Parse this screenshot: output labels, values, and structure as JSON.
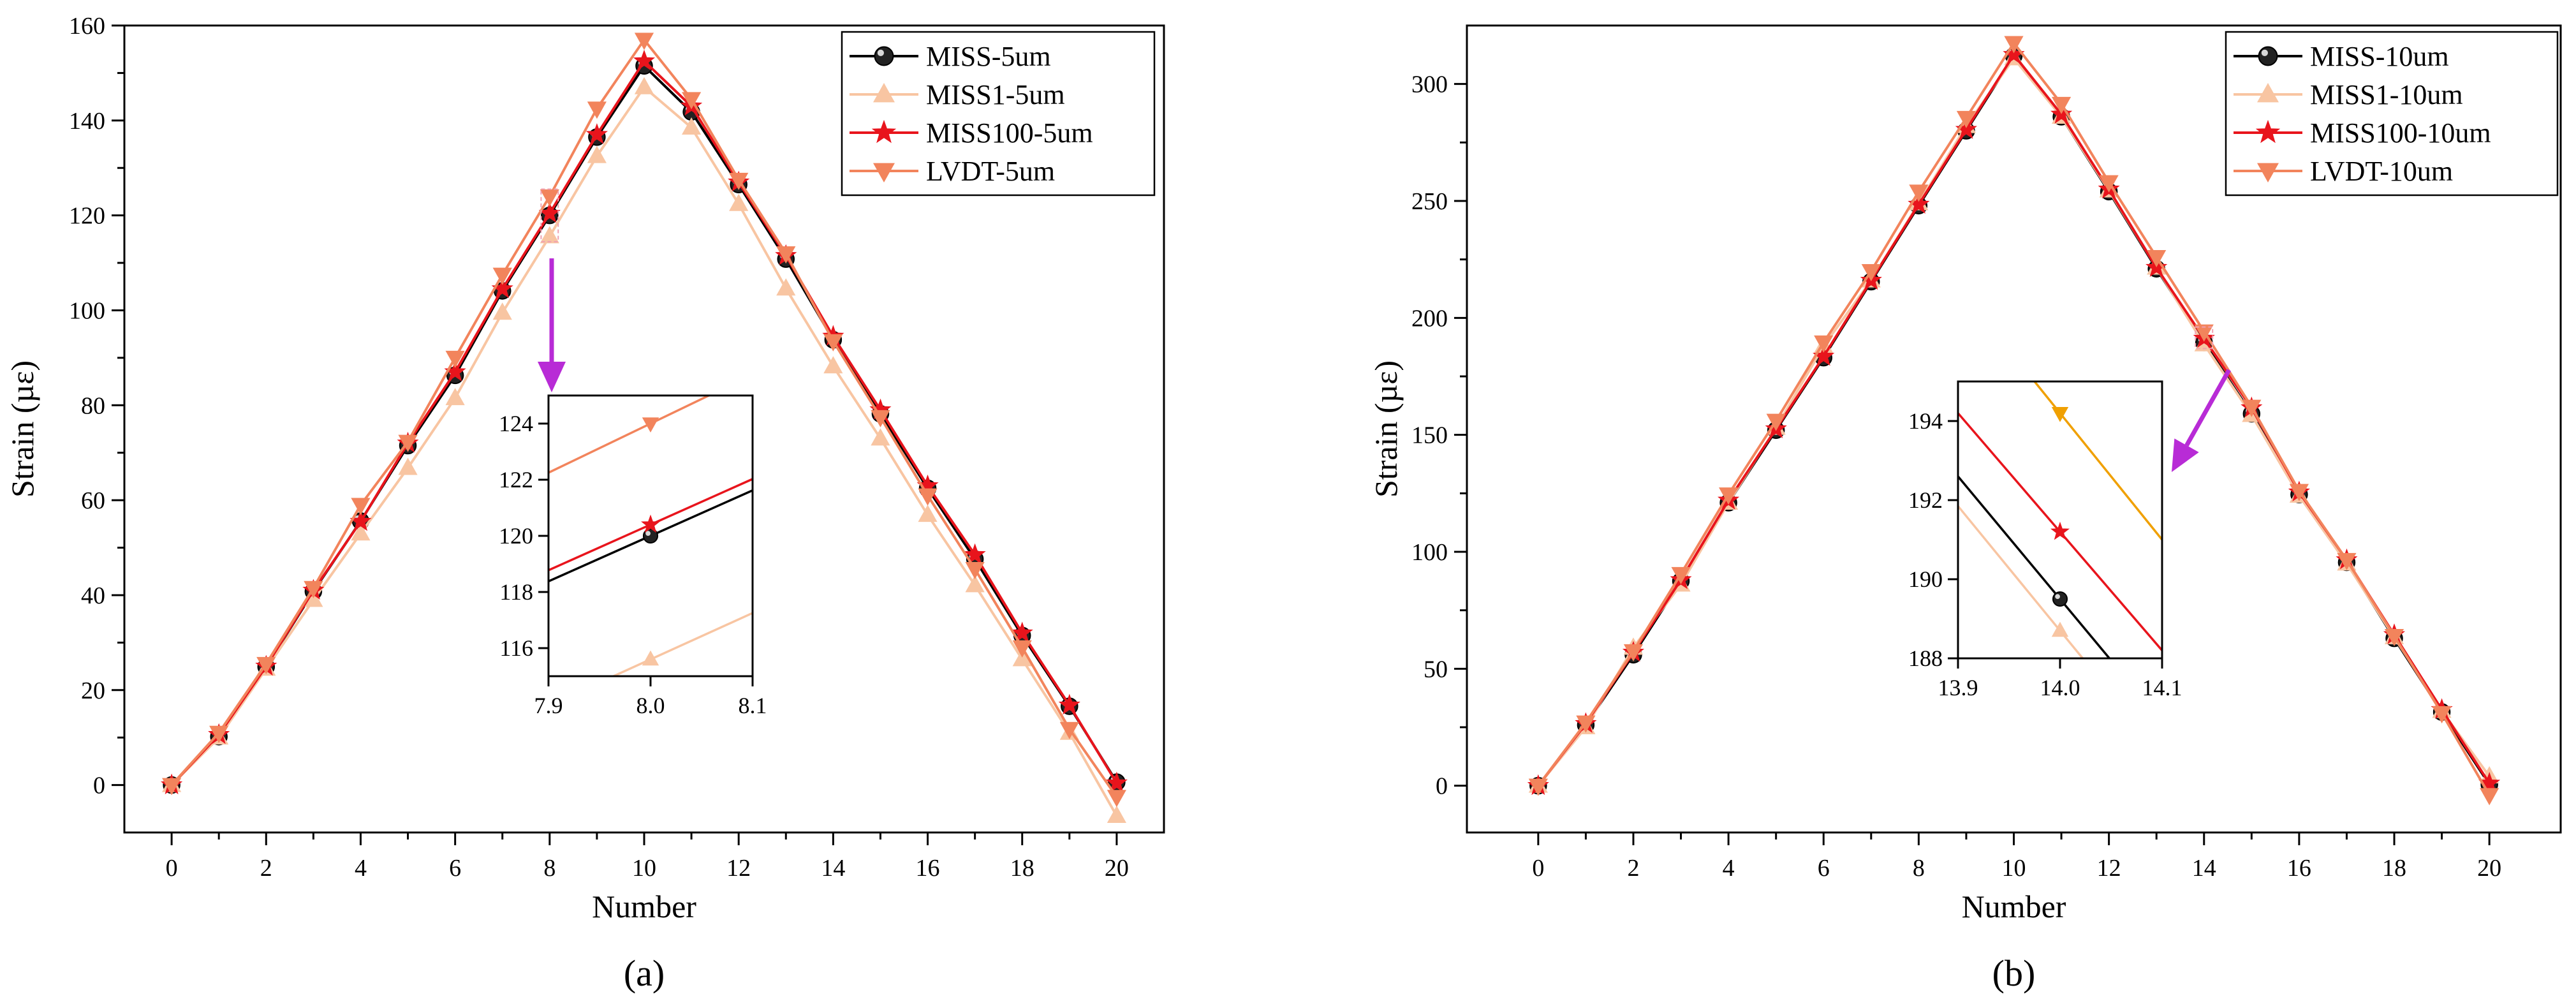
{
  "chart_data": [
    {
      "type": "line",
      "panel_label": "(a)",
      "xlabel": "Number",
      "ylabel": "Strain (µε)",
      "xlim": [
        -1,
        21
      ],
      "ylim": [
        -10,
        160
      ],
      "xticks": [
        0,
        2,
        4,
        6,
        8,
        10,
        12,
        14,
        16,
        18,
        20
      ],
      "yticks": [
        0,
        20,
        40,
        60,
        80,
        100,
        120,
        140,
        160
      ],
      "x": [
        0,
        1,
        2,
        3,
        4,
        5,
        6,
        7,
        8,
        9,
        10,
        11,
        12,
        13,
        14,
        15,
        16,
        17,
        18,
        19,
        20
      ],
      "series": [
        {
          "name": "MISS-5um",
          "color": "#000000",
          "marker": "circle",
          "values": [
            0,
            10.2,
            24.9,
            40.8,
            55.6,
            71.5,
            86.3,
            104.1,
            120.0,
            136.5,
            151.5,
            141.8,
            126.5,
            110.8,
            93.8,
            78.2,
            62.5,
            47.6,
            31.5,
            16.6,
            0.6
          ]
        },
        {
          "name": "MISS1-5um",
          "color": "#f8c5a2",
          "marker": "triangle-up",
          "values": [
            0,
            10.0,
            24.5,
            39.0,
            53.0,
            66.8,
            81.5,
            99.5,
            115.6,
            132.5,
            147.0,
            138.5,
            122.4,
            104.6,
            88.2,
            73.0,
            56.9,
            42.1,
            26.5,
            11.0,
            -6.5
          ]
        },
        {
          "name": "MISS100-5um",
          "color": "#e8141c",
          "marker": "star",
          "values": [
            0,
            10.6,
            25.0,
            41.0,
            55.5,
            72.0,
            87.0,
            104.5,
            120.4,
            137.0,
            152.5,
            143.0,
            127.0,
            111.5,
            94.5,
            79.0,
            63.0,
            48.5,
            32.0,
            16.8,
            0.4
          ]
        },
        {
          "name": "LVDT-5um",
          "color": "#f2845c",
          "marker": "triangle-down",
          "values": [
            0,
            11.0,
            25.5,
            41.5,
            59.0,
            72.3,
            90.0,
            107.5,
            124.0,
            142.5,
            157.0,
            144.5,
            127.5,
            112.0,
            93.5,
            77.5,
            61.0,
            45.5,
            29.0,
            11.8,
            -2.5
          ]
        }
      ],
      "inset": {
        "xlim": [
          7.9,
          8.1
        ],
        "ylim": [
          115,
          125
        ],
        "xticks": [
          7.9,
          8.0,
          8.1
        ],
        "yticks": [
          116,
          118,
          120,
          122,
          124
        ],
        "xtick_labels": [
          "7.9",
          "8.0",
          "8.1"
        ]
      }
    },
    {
      "type": "line",
      "panel_label": "(b)",
      "xlabel": "Number",
      "ylabel": "Strain (µε)",
      "xlim": [
        -1.5,
        21.5
      ],
      "ylim": [
        -20,
        325
      ],
      "xticks": [
        0,
        2,
        4,
        6,
        8,
        10,
        12,
        14,
        16,
        18,
        20
      ],
      "yticks": [
        0,
        50,
        100,
        150,
        200,
        250,
        300
      ],
      "x": [
        0,
        1,
        2,
        3,
        4,
        5,
        6,
        7,
        8,
        9,
        10,
        11,
        12,
        13,
        14,
        15,
        16,
        17,
        18,
        19,
        20
      ],
      "series": [
        {
          "name": "MISS-10um",
          "color": "#000000",
          "marker": "circle",
          "values": [
            0,
            26.0,
            56.0,
            87.5,
            121.0,
            152.0,
            183.0,
            215.5,
            248.0,
            280.0,
            312.0,
            286.0,
            254.0,
            221.0,
            189.5,
            159.0,
            124.5,
            95.5,
            63.0,
            31.5,
            0.5
          ]
        },
        {
          "name": "MISS1-10um",
          "color": "#f8c5a2",
          "marker": "triangle-up",
          "values": [
            0,
            25.0,
            59.0,
            86.0,
            121.0,
            153.0,
            188.0,
            216.0,
            249.0,
            282.0,
            311.0,
            286.0,
            254.5,
            221.5,
            188.7,
            158.5,
            124.0,
            95.0,
            63.5,
            32.0,
            4.0
          ]
        },
        {
          "name": "MISS100-10um",
          "color": "#e8141c",
          "marker": "star",
          "values": [
            0,
            26.5,
            57.0,
            88.0,
            122.0,
            152.5,
            183.5,
            216.0,
            248.5,
            280.5,
            312.5,
            287.0,
            255.0,
            221.5,
            191.2,
            161.5,
            125.5,
            96.5,
            64.5,
            32.5,
            1.0
          ]
        },
        {
          "name": "LVDT-10um",
          "color": "#f2845c",
          "marker": "triangle-down",
          "values": [
            0,
            27.0,
            57.5,
            90.5,
            124.5,
            156.0,
            189.5,
            220.0,
            254.0,
            285.5,
            317.5,
            291.5,
            258.0,
            226.0,
            194.2,
            162.0,
            126.0,
            96.5,
            64.0,
            31.0,
            -4.0
          ]
        }
      ],
      "inset": {
        "xlim": [
          13.9,
          14.1
        ],
        "ylim": [
          188,
          195
        ],
        "xticks": [
          13.9,
          14.0,
          14.1
        ],
        "yticks": [
          188,
          190,
          192,
          194
        ],
        "xtick_labels": [
          "13.9",
          "14.0",
          "14.1"
        ],
        "lvdt_color": "#f0a000"
      }
    }
  ]
}
